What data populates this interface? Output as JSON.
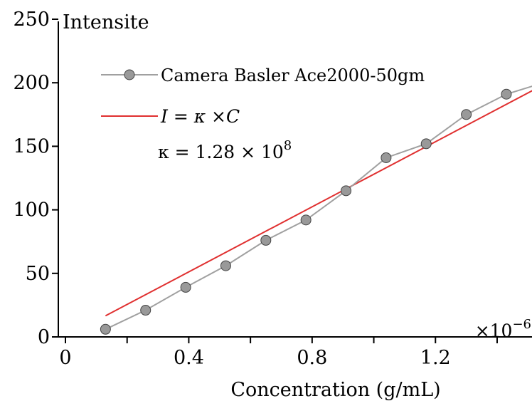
{
  "chart_data": {
    "type": "line",
    "xlabel": "Concentration (g/mL)",
    "ylabel": "Intensite",
    "x_multiplier_label": "×10",
    "x_multiplier_exp": "−6",
    "xlim": [
      0,
      1.55
    ],
    "ylim": [
      0,
      250
    ],
    "x_ticks": [
      0,
      0.2,
      0.4,
      0.6,
      0.8,
      1.0,
      1.2,
      1.4
    ],
    "x_tick_labels": [
      "0",
      "",
      "0.4",
      "",
      "0.8",
      "",
      "1.2",
      ""
    ],
    "y_ticks": [
      0,
      50,
      100,
      150,
      200,
      250
    ],
    "y_tick_labels": [
      "0",
      "50",
      "100",
      "150",
      "200",
      "250"
    ],
    "grid": false,
    "legend_position": "top-left",
    "series": [
      {
        "name": "Camera Basler Ace2000-50gm",
        "type": "line-marker",
        "color": "#a0a0a0",
        "marker_fill": "#999999",
        "x": [
          0.13,
          0.26,
          0.39,
          0.52,
          0.65,
          0.78,
          0.91,
          1.04,
          1.17,
          1.3,
          1.43,
          1.55
        ],
        "y": [
          6,
          21,
          39,
          56,
          76,
          92,
          115,
          141,
          152,
          175,
          191,
          200
        ]
      },
      {
        "name": "I = κ ×C",
        "type": "line",
        "color": "#e03030",
        "x": [
          0.13,
          1.55
        ],
        "y": [
          16.6,
          198.4
        ]
      }
    ],
    "annotation": {
      "prefix": "κ = 1.28 × 10",
      "exponent": "8"
    }
  }
}
